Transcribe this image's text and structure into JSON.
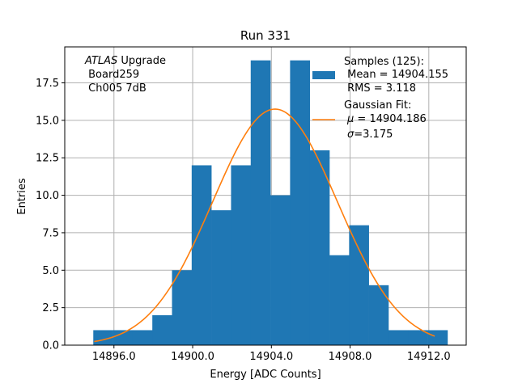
{
  "chart_data": {
    "type": "bar",
    "title": "Run 331",
    "xlabel": "Energy [ADC Counts]",
    "ylabel": "Entries",
    "xlim": [
      14893.5,
      14913.9
    ],
    "ylim": [
      0,
      19.9
    ],
    "grid": true,
    "xticks": [
      14896.0,
      14900.0,
      14904.0,
      14908.0,
      14912.0
    ],
    "xtick_labels": [
      "14896.0",
      "14900.0",
      "14904.0",
      "14908.0",
      "14912.0"
    ],
    "yticks": [
      0,
      2.5,
      5,
      7.5,
      10,
      12.5,
      15,
      17.5
    ],
    "ytick_labels": [
      "0.0",
      "2.5",
      "5.0",
      "7.5",
      "10.0",
      "12.5",
      "15.0",
      "17.5"
    ],
    "bin_edges": [
      14894.95,
      14895.95,
      14896.95,
      14897.95,
      14898.95,
      14899.95,
      14900.95,
      14901.95,
      14902.95,
      14903.95,
      14904.95,
      14905.95,
      14906.95,
      14907.95,
      14908.95,
      14909.95,
      14910.95,
      14911.95,
      14912.95
    ],
    "values": [
      1,
      1,
      1,
      2,
      5,
      12,
      9,
      12,
      19,
      10,
      19,
      13,
      6,
      8,
      4,
      1,
      1,
      1
    ],
    "bar_color": "#1f77b4",
    "fit": {
      "type": "gaussian",
      "mu": 14904.186,
      "sigma": 3.175,
      "amplitude": 15.75,
      "x_range": [
        14895.0,
        14912.3
      ],
      "color": "#ff7f0e"
    },
    "annotation": {
      "line1_italic": "ATLAS",
      "line1_rest": " Upgrade",
      "line2": " Board259",
      "line3": " Ch005 7dB"
    },
    "legend": {
      "position": "upper right",
      "samples_line1": "Samples (125):",
      "samples_line2": " Mean = 14904.155",
      "samples_line3": " RMS = 3.118",
      "fit_line1": "Gaussian Fit:",
      "fit_line2_symbol": "μ",
      "fit_line2_rest": " = 14904.186",
      "fit_line3_symbol": "σ",
      "fit_line3_rest": "=3.175"
    }
  }
}
